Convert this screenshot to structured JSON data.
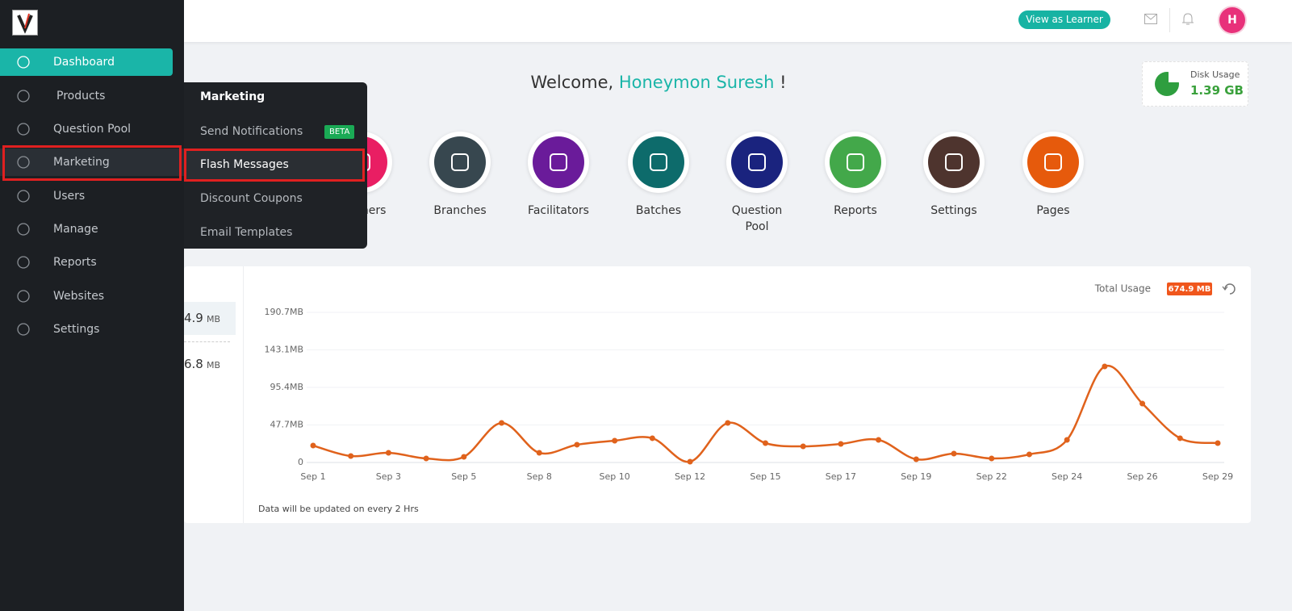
{
  "sidebar": {
    "menu": [
      "Dashboard",
      "Products",
      "Question Pool",
      "Marketing",
      "Users",
      "Manage",
      "Reports",
      "Websites",
      "Settings"
    ]
  },
  "header": {
    "button": "View as Learner",
    "avatar": "H"
  },
  "flyout": {
    "title": "Marketing",
    "items": [
      "Send Notifications",
      "Flash Messages",
      "Discount Coupons",
      "Email Templates"
    ],
    "badge": "BETA"
  },
  "welcome": {
    "greeting": "Welcome,",
    "name": "Honeymon Suresh",
    "end": "!"
  },
  "disk_usage": {
    "label": "Disk Usage",
    "value": "1.39 GB"
  },
  "shortcuts": [
    "Learners",
    "Branches",
    "Facilitators",
    "Batches",
    "Question Pool",
    "Reports",
    "Settings",
    "Pages"
  ],
  "usage_summary": [
    {
      "value": "4.9",
      "unit": "MB"
    },
    {
      "value": "6.8",
      "unit": "MB"
    }
  ],
  "usage_chart": {
    "type": "line",
    "legend_label": "Total Usage",
    "total": "674.9 MB",
    "color": "#e0621c",
    "categories": [
      "Sep 1",
      null,
      "Sep 3",
      null,
      "Sep 5",
      null,
      "Sep 8",
      null,
      "Sep 10",
      null,
      "Sep 12",
      null,
      "Sep 15",
      null,
      "Sep 17",
      null,
      "Sep 19",
      null,
      "Sep 22",
      null,
      "Sep 24",
      null,
      "Sep 26",
      null,
      "Sep 29"
    ],
    "values": [
      21.5,
      8.2,
      12.3,
      5.1,
      7.2,
      50.2,
      12.3,
      22.6,
      27.7,
      30.8,
      1.0,
      50.2,
      24.6,
      20.5,
      23.6,
      28.7,
      4.1,
      11.3,
      5.1,
      10.3,
      28.7,
      122,
      74.8,
      30.8,
      24.6
    ],
    "ylim": [
      0,
      190.7
    ],
    "yticks": [
      0,
      {
        "value": 47.7,
        "label": "47.7MB"
      },
      {
        "value": 95.4,
        "label": "95.4MB"
      },
      {
        "value": 143.1,
        "label": "143.1MB"
      },
      {
        "value": 190.7,
        "label": "190.7MB"
      }
    ],
    "grid": true,
    "note": "Data will be updated on every 2 Hrs"
  }
}
